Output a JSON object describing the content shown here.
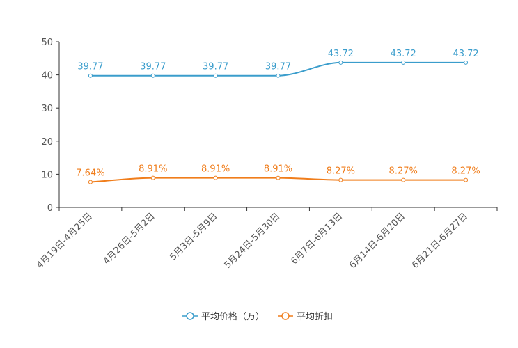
{
  "chart_data": {
    "type": "line",
    "categories": [
      "4月19日-4月25日",
      "4月26日-5月2日",
      "5月3日-5月9日",
      "5月24日-5月30日",
      "6月7日-6月13日",
      "6月14日-6月20日",
      "6月21日-6月27日"
    ],
    "ylim": [
      0,
      50
    ],
    "yticks": [
      0,
      10,
      20,
      30,
      40,
      50
    ],
    "ytick_labels": [
      "0",
      "10",
      "20",
      "30",
      "40",
      "50"
    ],
    "smooth": true,
    "grid": false,
    "legend_position": "bottom-center",
    "series": [
      {
        "name": "平均价格（万）",
        "color": "#3a9dcc",
        "values": [
          39.77,
          39.77,
          39.77,
          39.77,
          43.72,
          43.72,
          43.72
        ],
        "labels": [
          "39.77",
          "39.77",
          "39.77",
          "39.77",
          "43.72",
          "43.72",
          "43.72"
        ]
      },
      {
        "name": "平均折扣",
        "color": "#f07d1b",
        "values": [
          7.64,
          8.91,
          8.91,
          8.91,
          8.27,
          8.27,
          8.27
        ],
        "labels": [
          "7.64%",
          "8.91%",
          "8.91%",
          "8.91%",
          "8.27%",
          "8.27%",
          "8.27%"
        ]
      }
    ]
  }
}
